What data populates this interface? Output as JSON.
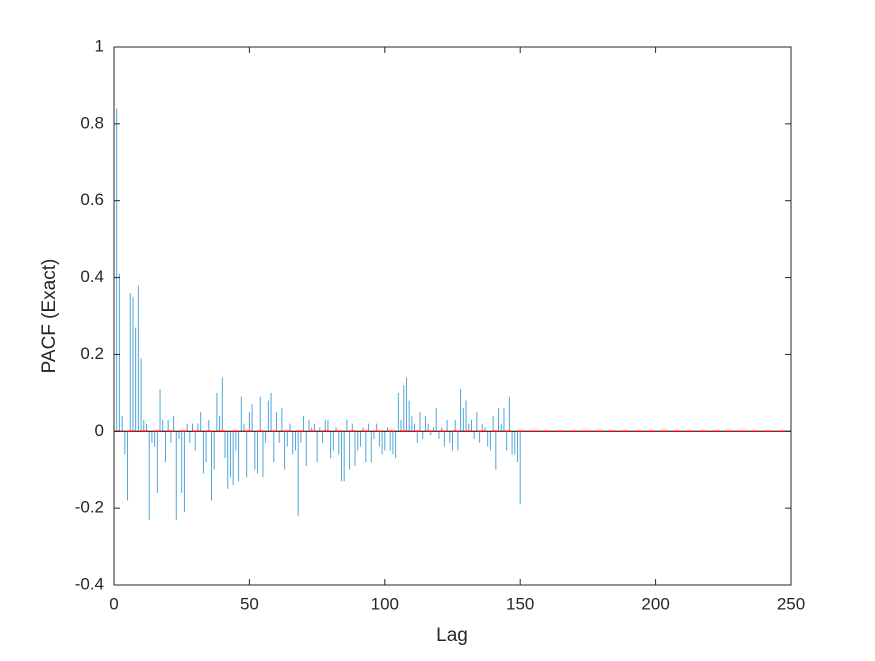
{
  "chart_data": {
    "type": "stem",
    "xlabel": "Lag",
    "ylabel": "PACF (Exact)",
    "x": [
      0,
      1,
      2,
      3,
      4,
      5,
      6,
      7,
      8,
      9,
      10,
      11,
      12,
      13,
      14,
      15,
      16,
      17,
      18,
      19,
      20,
      21,
      22,
      23,
      24,
      25,
      26,
      27,
      28,
      29,
      30,
      31,
      32,
      33,
      34,
      35,
      36,
      37,
      38,
      39,
      40,
      41,
      42,
      43,
      44,
      45,
      46,
      47,
      48,
      49,
      50,
      51,
      52,
      53,
      54,
      55,
      56,
      57,
      58,
      59,
      60,
      61,
      62,
      63,
      64,
      65,
      66,
      67,
      68,
      69,
      70,
      71,
      72,
      73,
      74,
      75,
      76,
      77,
      78,
      79,
      80,
      81,
      82,
      83,
      84,
      85,
      86,
      87,
      88,
      89,
      90,
      91,
      92,
      93,
      94,
      95,
      96,
      97,
      98,
      99,
      100,
      101,
      102,
      103,
      104,
      105,
      106,
      107,
      108,
      109,
      110,
      111,
      112,
      113,
      114,
      115,
      116,
      117,
      118,
      119,
      120,
      121,
      122,
      123,
      124,
      125,
      126,
      127,
      128,
      129,
      130,
      131,
      132,
      133,
      134,
      135,
      136,
      137,
      138,
      139,
      140,
      141,
      142,
      143,
      144,
      145,
      146,
      147,
      148,
      149,
      150
    ],
    "values": [
      1,
      0.84,
      0.41,
      0.04,
      -0.06,
      -0.18,
      0.36,
      0.35,
      0.27,
      0.38,
      0.19,
      0.03,
      0.02,
      -0.23,
      -0.03,
      -0.04,
      -0.16,
      0.11,
      0.03,
      -0.08,
      0.03,
      -0.03,
      0.04,
      -0.23,
      -0.02,
      -0.16,
      -0.21,
      0.02,
      -0.03,
      0.02,
      -0.05,
      0.02,
      0.05,
      -0.11,
      -0.08,
      0.03,
      -0.18,
      -0.1,
      0.1,
      0.04,
      0.14,
      -0.07,
      -0.15,
      -0.12,
      -0.14,
      -0.05,
      -0.13,
      0.09,
      0.02,
      -0.12,
      0.05,
      0.07,
      -0.1,
      -0.11,
      0.09,
      -0.12,
      -0.03,
      0.08,
      0.1,
      -0.08,
      0.05,
      -0.03,
      0.06,
      -0.1,
      -0.04,
      0.02,
      -0.06,
      -0.05,
      -0.22,
      -0.03,
      0.04,
      -0.09,
      0.03,
      0.01,
      0.02,
      -0.08,
      0.01,
      -0.03,
      0.03,
      0.03,
      -0.07,
      -0.05,
      0.01,
      -0.06,
      -0.13,
      -0.13,
      0.03,
      -0.1,
      0.02,
      -0.09,
      -0.05,
      -0.04,
      0.01,
      -0.08,
      0.02,
      -0.08,
      -0.02,
      0.02,
      -0.04,
      -0.06,
      -0.05,
      0.01,
      -0.05,
      -0.06,
      -0.07,
      0.1,
      0.03,
      0.12,
      0.14,
      0.08,
      0.04,
      0.02,
      -0.03,
      0.05,
      -0.02,
      0.04,
      0.02,
      -0.01,
      0.01,
      0.06,
      -0.02,
      0.01,
      -0.04,
      0.03,
      -0.03,
      -0.05,
      0.03,
      -0.05,
      0.11,
      0.06,
      0.08,
      0.02,
      0.03,
      -0.02,
      0.05,
      -0.03,
      0.02,
      0.01,
      -0.04,
      -0.05,
      0.04,
      -0.1,
      0.06,
      0.02,
      0.06,
      -0.05,
      0.09,
      -0.06,
      -0.06,
      -0.08,
      -0.19
    ],
    "color": "#4fa6d8",
    "confidence_bound": 0,
    "bound_color": "#ff0000",
    "xlim": [
      0,
      250
    ],
    "xticks": [
      0,
      50,
      100,
      150,
      200,
      250
    ],
    "ylim": [
      -0.4,
      1
    ],
    "yticks": [
      -0.4,
      -0.2,
      0,
      0.2,
      0.4,
      0.6,
      0.8,
      1
    ]
  }
}
